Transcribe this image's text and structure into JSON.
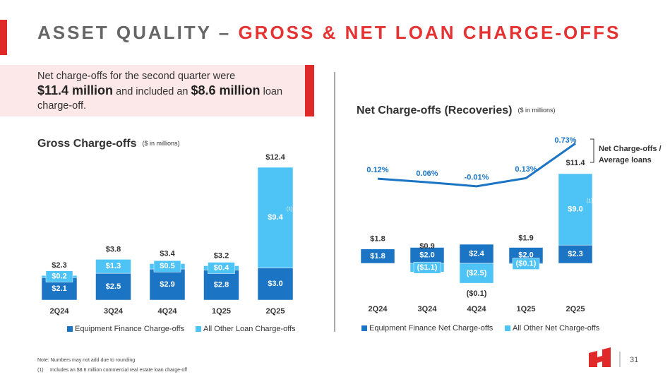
{
  "header": {
    "title_prefix": "ASSET QUALITY – ",
    "title_highlight": "GROSS & NET LOAN CHARGE-OFFS"
  },
  "callout": {
    "line1": "Net charge-offs for the second quarter were",
    "amount1": "$11.4 million",
    "mid": " and included an ",
    "amount2": "$8.6 million",
    "end": " loan charge-off."
  },
  "chart_data": [
    {
      "type": "bar",
      "stacked": true,
      "title": "Gross Charge-offs",
      "subtitle": "($ in millions)",
      "annotation": "(1)",
      "categories": [
        "2Q24",
        "3Q24",
        "4Q24",
        "1Q25",
        "2Q25"
      ],
      "series": [
        {
          "name": "Equipment Finance Charge-offs",
          "color": "#1b75c4",
          "values": [
            2.1,
            2.5,
            2.9,
            2.8,
            3.0
          ],
          "value_labels": [
            "$2.1",
            "$2.5",
            "$2.9",
            "$2.8",
            "$3.0"
          ]
        },
        {
          "name": "All Other Loan Charge-offs",
          "color": "#4ec3f5",
          "values": [
            0.2,
            1.3,
            0.5,
            0.4,
            9.4
          ],
          "value_labels": [
            "$0.2",
            "$1.3",
            "$0.5",
            "$0.4",
            "$9.4"
          ]
        }
      ],
      "totals": [
        2.3,
        3.8,
        3.4,
        3.2,
        12.4
      ],
      "total_labels": [
        "$2.3",
        "$3.8",
        "$3.4",
        "$3.2",
        "$12.4"
      ]
    },
    {
      "type": "bar",
      "stacked": true,
      "title": "Net Charge-offs (Recoveries)",
      "subtitle": "($ in millions)",
      "annotation": "(1)",
      "categories": [
        "2Q24",
        "3Q24",
        "4Q24",
        "1Q25",
        "2Q25"
      ],
      "series": [
        {
          "name": "Equipment Finance Net Charge-offs",
          "color": "#1b75c4",
          "values": [
            1.8,
            2.0,
            2.4,
            2.0,
            2.3
          ],
          "value_labels": [
            "$1.8",
            "$2.0",
            "$2.4",
            "$2.0",
            "$2.3"
          ]
        },
        {
          "name": "All Other Net Charge-offs",
          "color": "#4ec3f5",
          "values": [
            null,
            -1.1,
            -2.5,
            -0.1,
            9.0
          ],
          "value_labels": [
            null,
            "($1.1)",
            "($2.5)",
            "($0.1)",
            "$9.0"
          ]
        },
        {
          "name": "Net Charge-offs / Average loans",
          "type": "line",
          "axis": "y2",
          "color": "#1b75c4",
          "values": [
            0.12,
            0.06,
            -0.01,
            0.13,
            0.73
          ],
          "value_labels": [
            "0.12%",
            "0.06%",
            "-0.01%",
            "0.13%",
            "0.73%"
          ]
        }
      ],
      "totals": [
        1.8,
        0.9,
        -0.1,
        1.9,
        11.4
      ],
      "total_labels": [
        "$1.8",
        "$0.9",
        "($0.1)",
        "$1.9",
        "$11.4"
      ]
    }
  ],
  "footer": {
    "note": "Note: Numbers may not add due to rounding",
    "footnote_marker": "(1)",
    "footnote": "Includes an $8.6 million commercial real estate loan charge-off",
    "page": 31
  }
}
